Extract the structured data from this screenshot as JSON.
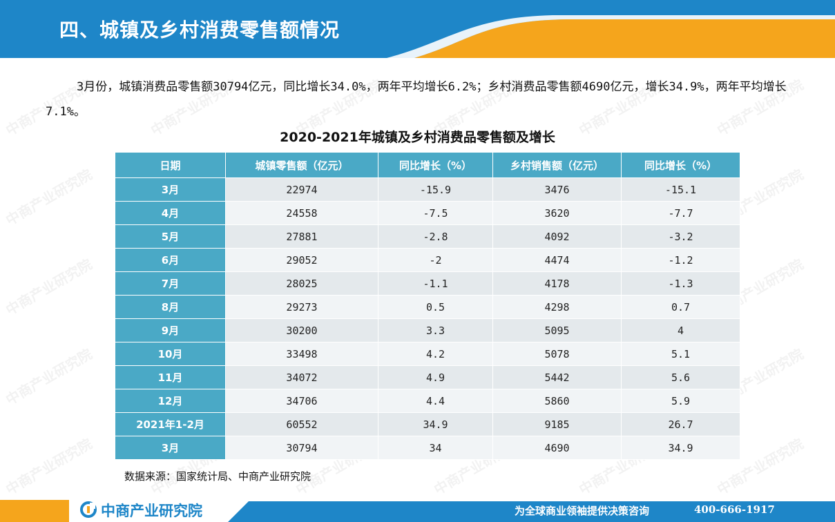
{
  "header": {
    "title": "四、城镇及乡村消费零售额情况"
  },
  "paragraph": "3月份，城镇消费品零售额30794亿元，同比增长34.0%，两年平均增长6.2%；乡村消费品零售额4690亿元，增长34.9%，两年平均增长7.1%。",
  "table": {
    "title": "2020-2021年城镇及乡村消费品零售额及增长",
    "columns": [
      "日期",
      "城镇零售额（亿元）",
      "同比增长（%）",
      "乡村销售额（亿元）",
      "同比增长（%）"
    ],
    "rows": [
      [
        "3月",
        "22974",
        "-15.9",
        "3476",
        "-15.1"
      ],
      [
        "4月",
        "24558",
        "-7.5",
        "3620",
        "-7.7"
      ],
      [
        "5月",
        "27881",
        "-2.8",
        "4092",
        "-3.2"
      ],
      [
        "6月",
        "29052",
        "-2",
        "4474",
        "-1.2"
      ],
      [
        "7月",
        "28025",
        "-1.1",
        "4178",
        "-1.3"
      ],
      [
        "8月",
        "29273",
        "0.5",
        "4298",
        "0.7"
      ],
      [
        "9月",
        "30200",
        "3.3",
        "5095",
        "4"
      ],
      [
        "10月",
        "33498",
        "4.2",
        "5078",
        "5.1"
      ],
      [
        "11月",
        "34072",
        "4.9",
        "5442",
        "5.6"
      ],
      [
        "12月",
        "34706",
        "4.4",
        "5860",
        "5.9"
      ],
      [
        "2021年1-2月",
        "60552",
        "34.9",
        "9185",
        "26.7"
      ],
      [
        "3月",
        "30794",
        "34",
        "4690",
        "34.9"
      ]
    ]
  },
  "source": "数据来源：国家统计局、中商产业研究院",
  "footer": {
    "logo_text": "中商产业研究院",
    "slogan": "为全球商业领袖提供决策咨询",
    "phone": "400-666-1917"
  },
  "watermark": "中商产业研究院",
  "colors": {
    "header_blue": "#1e86c8",
    "accent_orange": "#f5a51c",
    "table_blue": "#4aa9c6"
  }
}
